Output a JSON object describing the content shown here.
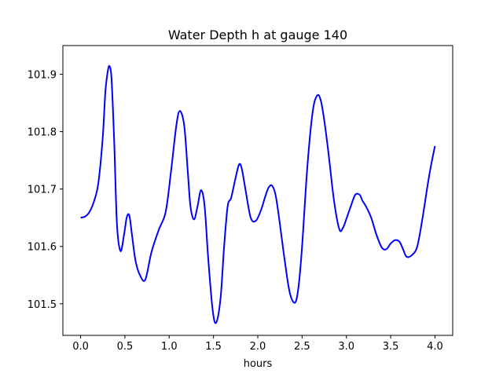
{
  "chart_data": {
    "type": "line",
    "title": "Water Depth h at gauge 140",
    "xlabel": "hours",
    "ylabel": "",
    "xlim": [
      -0.2,
      4.2
    ],
    "ylim": [
      101.445,
      101.95
    ],
    "xticks": [
      0.0,
      0.5,
      1.0,
      1.5,
      2.0,
      2.5,
      3.0,
      3.5,
      4.0
    ],
    "xtick_labels": [
      "0.0",
      "0.5",
      "1.0",
      "1.5",
      "2.0",
      "2.5",
      "3.0",
      "3.5",
      "4.0"
    ],
    "yticks": [
      101.5,
      101.6,
      101.7,
      101.8,
      101.9
    ],
    "ytick_labels": [
      "101.5",
      "101.6",
      "101.7",
      "101.8",
      "101.9"
    ],
    "grid": false,
    "series": [
      {
        "color": "#0000ff",
        "x": [
          0.0,
          0.05,
          0.1,
          0.15,
          0.2,
          0.25,
          0.28,
          0.31,
          0.33,
          0.35,
          0.38,
          0.41,
          0.45,
          0.49,
          0.52,
          0.55,
          0.58,
          0.62,
          0.67,
          0.73,
          0.8,
          0.88,
          0.96,
          1.02,
          1.08,
          1.12,
          1.17,
          1.21,
          1.24,
          1.28,
          1.32,
          1.36,
          1.4,
          1.44,
          1.49,
          1.53,
          1.58,
          1.62,
          1.66,
          1.7,
          1.75,
          1.79,
          1.82,
          1.86,
          1.92,
          1.98,
          2.04,
          2.08,
          2.12,
          2.16,
          2.2,
          2.24,
          2.3,
          2.36,
          2.42,
          2.46,
          2.5,
          2.56,
          2.62,
          2.67,
          2.71,
          2.75,
          2.8,
          2.86,
          2.92,
          2.96,
          3.0,
          3.05,
          3.1,
          3.15,
          3.18,
          3.22,
          3.28,
          3.34,
          3.4,
          3.45,
          3.5,
          3.55,
          3.6,
          3.64,
          3.68,
          3.74,
          3.8,
          3.86,
          3.92,
          3.96,
          4.0
        ],
        "values": [
          101.65,
          101.652,
          101.66,
          101.678,
          101.71,
          101.79,
          101.87,
          101.908,
          101.913,
          101.89,
          101.78,
          101.64,
          101.592,
          101.62,
          101.65,
          101.654,
          101.62,
          101.575,
          101.55,
          101.542,
          101.59,
          101.628,
          101.66,
          101.73,
          101.81,
          101.836,
          101.81,
          101.73,
          101.67,
          101.647,
          101.67,
          101.698,
          101.67,
          101.58,
          101.49,
          101.467,
          101.51,
          101.6,
          101.67,
          101.685,
          101.72,
          101.743,
          101.735,
          101.7,
          101.65,
          101.645,
          101.665,
          101.685,
          101.702,
          101.706,
          101.69,
          101.65,
          101.58,
          101.52,
          101.502,
          101.53,
          101.6,
          101.74,
          101.835,
          101.863,
          101.855,
          101.82,
          101.76,
          101.68,
          101.63,
          101.632,
          101.648,
          101.67,
          101.69,
          101.69,
          101.68,
          101.67,
          101.65,
          101.62,
          101.598,
          101.595,
          101.605,
          101.611,
          101.608,
          101.595,
          101.582,
          101.585,
          101.6,
          101.65,
          101.71,
          101.745,
          101.775
        ]
      }
    ]
  }
}
